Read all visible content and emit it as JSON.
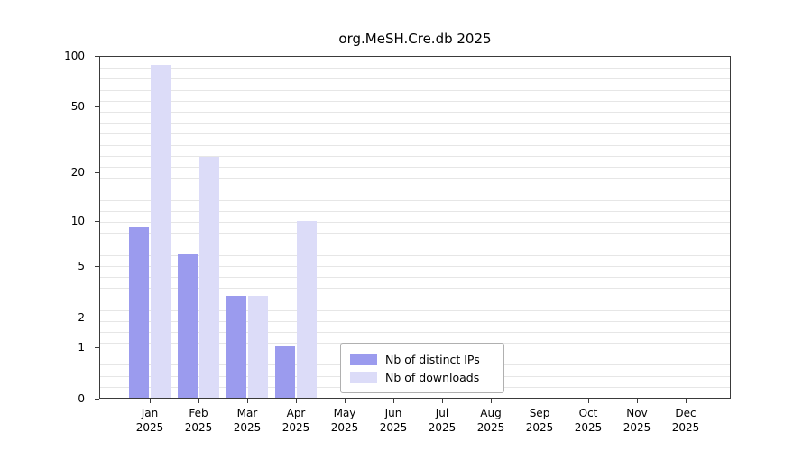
{
  "title": "org.MeSH.Cre.db 2025",
  "chart_data": {
    "type": "bar",
    "title": "org.MeSH.Cre.db 2025",
    "categories": [
      "Jan",
      "Feb",
      "Mar",
      "Apr",
      "May",
      "Jun",
      "Jul",
      "Aug",
      "Sep",
      "Oct",
      "Nov",
      "Dec"
    ],
    "year": "2025",
    "series": [
      {
        "name": "Nb of distinct IPs",
        "color": "#9b9bee",
        "values": [
          9,
          6,
          3,
          1,
          0,
          0,
          0,
          0,
          0,
          0,
          0,
          0
        ]
      },
      {
        "name": "Nb of downloads",
        "color": "#dcdcf8",
        "values": [
          90,
          25,
          3,
          10,
          0,
          0,
          0,
          0,
          0,
          0,
          0,
          0
        ]
      }
    ],
    "yticks": [
      0,
      1,
      2,
      5,
      10,
      20,
      50,
      100
    ],
    "ylim": [
      0,
      100
    ],
    "scale": "log10(1+x)",
    "grid": "horizontal",
    "legend_position": "bottom-center",
    "xlabel": "",
    "ylabel": ""
  }
}
